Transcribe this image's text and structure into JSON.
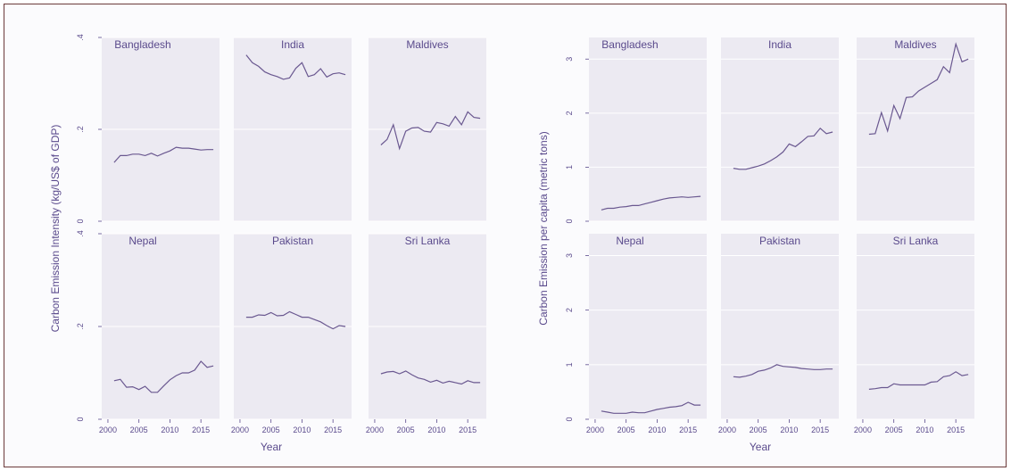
{
  "chart_data": [
    {
      "type": "line",
      "xlabel": "Year",
      "ylabel": "Carbon Emission Intensity (kg/US$ of GDP)",
      "ylim": [
        0,
        0.4
      ],
      "yticks": [
        {
          "v": 0,
          "label": "0"
        },
        {
          "v": 0.2,
          "label": ".2"
        },
        {
          "v": 0.4,
          "label": ".4"
        }
      ],
      "xlim": [
        1999,
        2018
      ],
      "xticks": [
        {
          "v": 2000,
          "label": "2000"
        },
        {
          "v": 2005,
          "label": "2005"
        },
        {
          "v": 2010,
          "label": "2010"
        },
        {
          "v": 2015,
          "label": "2015"
        }
      ],
      "x": [
        2001,
        2002,
        2003,
        2004,
        2005,
        2006,
        2007,
        2008,
        2009,
        2010,
        2011,
        2012,
        2013,
        2014,
        2015,
        2016,
        2017
      ],
      "panels": [
        {
          "title": "Bangladesh",
          "values": [
            0.128,
            0.143,
            0.143,
            0.146,
            0.146,
            0.143,
            0.148,
            0.142,
            0.148,
            0.153,
            0.161,
            0.159,
            0.159,
            0.157,
            0.155,
            0.156,
            0.156
          ]
        },
        {
          "title": "India",
          "values": [
            0.362,
            0.345,
            0.337,
            0.325,
            0.319,
            0.315,
            0.309,
            0.312,
            0.333,
            0.345,
            0.315,
            0.319,
            0.332,
            0.314,
            0.321,
            0.323,
            0.319
          ]
        },
        {
          "title": "Maldives",
          "values": [
            0.166,
            0.178,
            0.21,
            0.158,
            0.196,
            0.203,
            0.204,
            0.196,
            0.194,
            0.215,
            0.212,
            0.207,
            0.228,
            0.21,
            0.238,
            0.226,
            0.224
          ]
        },
        {
          "title": "Nepal",
          "values": [
            0.083,
            0.086,
            0.069,
            0.07,
            0.064,
            0.071,
            0.058,
            0.058,
            0.072,
            0.085,
            0.094,
            0.1,
            0.1,
            0.106,
            0.125,
            0.112,
            0.115
          ]
        },
        {
          "title": "Pakistan",
          "values": [
            0.22,
            0.22,
            0.225,
            0.224,
            0.23,
            0.223,
            0.224,
            0.232,
            0.226,
            0.22,
            0.22,
            0.215,
            0.21,
            0.202,
            0.195,
            0.202,
            0.2
          ]
        },
        {
          "title": "Sri Lanka",
          "values": [
            0.098,
            0.102,
            0.103,
            0.098,
            0.104,
            0.096,
            0.089,
            0.086,
            0.08,
            0.084,
            0.078,
            0.082,
            0.079,
            0.076,
            0.083,
            0.079,
            0.079
          ]
        }
      ]
    },
    {
      "type": "line",
      "xlabel": "Year",
      "ylabel": "Carbon Emission per capita (metric tons)",
      "ylim": [
        0,
        3.4
      ],
      "yticks": [
        {
          "v": 0,
          "label": "0"
        },
        {
          "v": 1,
          "label": "1"
        },
        {
          "v": 2,
          "label": "2"
        },
        {
          "v": 3,
          "label": "3"
        }
      ],
      "xlim": [
        1999,
        2018
      ],
      "xticks": [
        {
          "v": 2000,
          "label": "2000"
        },
        {
          "v": 2005,
          "label": "2005"
        },
        {
          "v": 2010,
          "label": "2010"
        },
        {
          "v": 2015,
          "label": "2015"
        }
      ],
      "x": [
        2001,
        2002,
        2003,
        2004,
        2005,
        2006,
        2007,
        2008,
        2009,
        2010,
        2011,
        2012,
        2013,
        2014,
        2015,
        2016,
        2017
      ],
      "panels": [
        {
          "title": "Bangladesh",
          "values": [
            0.21,
            0.24,
            0.24,
            0.26,
            0.27,
            0.29,
            0.29,
            0.32,
            0.35,
            0.38,
            0.41,
            0.43,
            0.44,
            0.45,
            0.44,
            0.45,
            0.46
          ]
        },
        {
          "title": "India",
          "values": [
            0.98,
            0.96,
            0.96,
            0.99,
            1.02,
            1.06,
            1.12,
            1.19,
            1.28,
            1.43,
            1.38,
            1.47,
            1.57,
            1.58,
            1.72,
            1.62,
            1.65
          ]
        },
        {
          "title": "Maldives",
          "values": [
            1.61,
            1.62,
            2.01,
            1.67,
            2.14,
            1.9,
            2.29,
            2.3,
            2.41,
            2.48,
            2.55,
            2.62,
            2.86,
            2.75,
            3.28,
            2.95,
            3.0
          ]
        },
        {
          "title": "Nepal",
          "values": [
            0.15,
            0.13,
            0.11,
            0.11,
            0.11,
            0.13,
            0.12,
            0.12,
            0.15,
            0.18,
            0.2,
            0.22,
            0.23,
            0.25,
            0.31,
            0.26,
            0.26
          ]
        },
        {
          "title": "Pakistan",
          "values": [
            0.78,
            0.77,
            0.79,
            0.82,
            0.88,
            0.9,
            0.94,
            1.0,
            0.97,
            0.96,
            0.95,
            0.93,
            0.92,
            0.91,
            0.91,
            0.92,
            0.92
          ]
        },
        {
          "title": "Sri Lanka",
          "values": [
            0.55,
            0.56,
            0.58,
            0.58,
            0.65,
            0.63,
            0.63,
            0.63,
            0.63,
            0.63,
            0.68,
            0.69,
            0.78,
            0.8,
            0.87,
            0.8,
            0.82
          ]
        }
      ]
    }
  ],
  "colors": {
    "line": "#6a5890",
    "panel_bg": "#eceaf2",
    "grid": "#ffffff",
    "text": "#5a4a8c"
  }
}
